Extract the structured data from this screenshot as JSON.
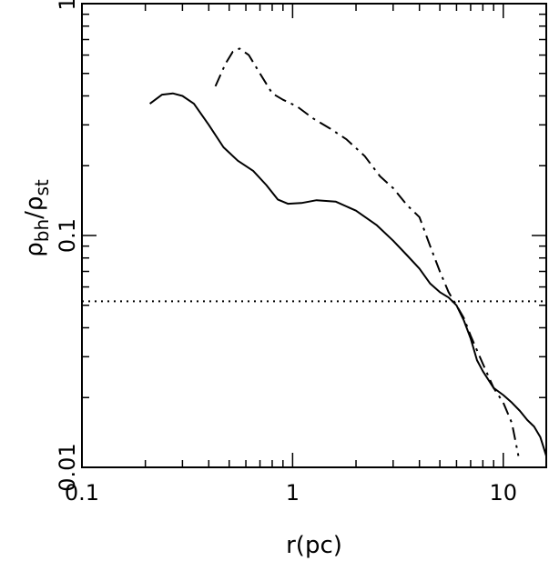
{
  "chart_data": {
    "type": "line",
    "xlabel": "r(pc)",
    "ylabel_main": "ρ",
    "ylabel_num_sub": "bh",
    "ylabel_slash": "/",
    "ylabel_den_sub": "st",
    "xscale": "log",
    "yscale": "log",
    "xlim": [
      0.1,
      16
    ],
    "ylim": [
      0.01,
      1
    ],
    "x_tick_labels": [
      {
        "value": 0.1,
        "label": "0.1"
      },
      {
        "value": 1,
        "label": "1"
      },
      {
        "value": 10,
        "label": "10"
      }
    ],
    "y_tick_labels": [
      {
        "value": 0.01,
        "label": "0.01"
      },
      {
        "value": 0.1,
        "label": "0.1"
      },
      {
        "value": 1,
        "label": "1"
      }
    ],
    "grid": false,
    "series": [
      {
        "style": "solid",
        "x": [
          0.21,
          0.24,
          0.27,
          0.3,
          0.34,
          0.4,
          0.47,
          0.55,
          0.65,
          0.75,
          0.85,
          0.95,
          1.1,
          1.3,
          1.6,
          2.0,
          2.5,
          3.0,
          3.5,
          4.0,
          4.5,
          5.0,
          5.5,
          6.0,
          6.5,
          7.0,
          7.5,
          8.0,
          9.0,
          10.0,
          11.0,
          12.0,
          13.0,
          14.0,
          15.0,
          16.0
        ],
        "y": [
          0.37,
          0.405,
          0.41,
          0.4,
          0.37,
          0.3,
          0.24,
          0.21,
          0.19,
          0.165,
          0.143,
          0.137,
          0.138,
          0.142,
          0.14,
          0.128,
          0.111,
          0.095,
          0.082,
          0.072,
          0.062,
          0.057,
          0.054,
          0.05,
          0.043,
          0.036,
          0.029,
          0.026,
          0.022,
          0.0205,
          0.019,
          0.0175,
          0.016,
          0.015,
          0.0135,
          0.0112
        ]
      },
      {
        "style": "dashdot",
        "x": [
          0.43,
          0.48,
          0.52,
          0.56,
          0.62,
          0.7,
          0.8,
          0.9,
          1.05,
          1.25,
          1.5,
          1.8,
          2.2,
          2.6,
          3.0,
          3.5,
          4.0,
          4.5,
          5.0,
          5.5,
          6.0,
          6.5,
          7.0,
          8.0,
          9.0,
          10.0,
          11.0,
          11.8
        ],
        "y": [
          0.44,
          0.55,
          0.62,
          0.64,
          0.6,
          0.5,
          0.41,
          0.385,
          0.36,
          0.32,
          0.29,
          0.26,
          0.22,
          0.18,
          0.16,
          0.135,
          0.12,
          0.09,
          0.07,
          0.057,
          0.05,
          0.044,
          0.037,
          0.028,
          0.022,
          0.019,
          0.0155,
          0.0112
        ]
      },
      {
        "style": "dotted",
        "x": [
          0.1,
          16
        ],
        "y": [
          0.052,
          0.052
        ]
      }
    ]
  }
}
